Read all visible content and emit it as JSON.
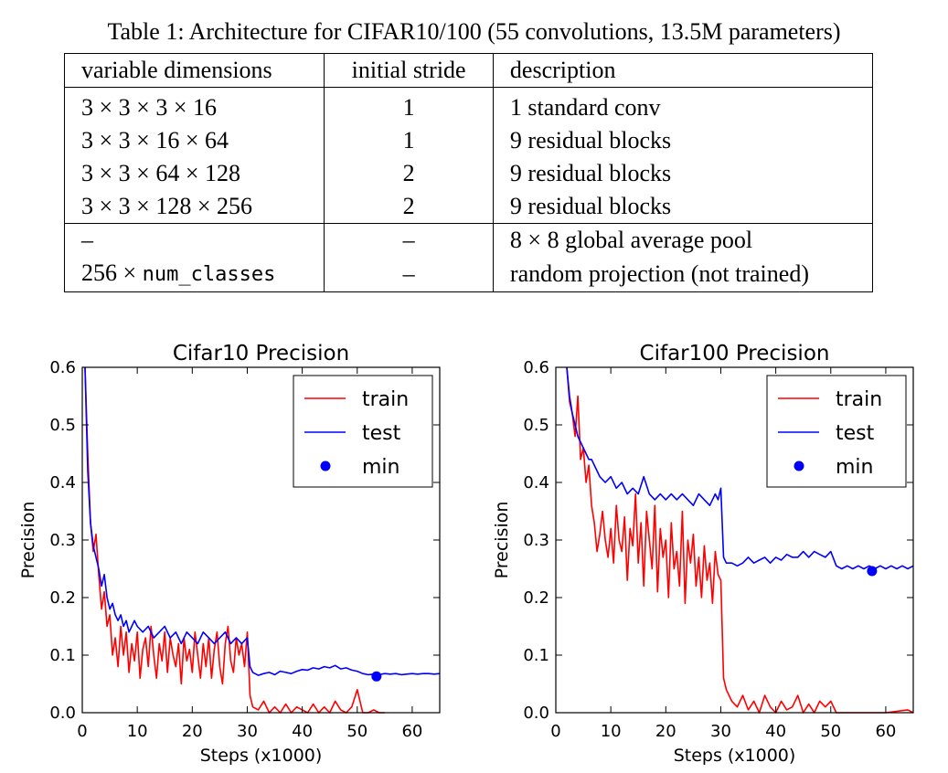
{
  "caption": "Table 1: Architecture for CIFAR10/100 (55 convolutions, 13.5M parameters)",
  "table": {
    "headers": [
      "variable dimensions",
      "initial stride",
      "description"
    ],
    "rows": [
      [
        "3 × 3 × 3 × 16",
        "1",
        "1 standard conv"
      ],
      [
        "3 × 3 × 16 × 64",
        "1",
        "9 residual blocks"
      ],
      [
        "3 × 3 × 64 × 128",
        "2",
        "9 residual blocks"
      ],
      [
        "3 × 3 × 128 × 256",
        "2",
        "9 residual blocks"
      ],
      [
        "–",
        "–",
        "8 × 8 global average pool"
      ],
      [
        "256 × ",
        "–",
        "random projection (not trained)"
      ]
    ],
    "num_classes_code": "num_classes"
  },
  "chart_data": [
    {
      "type": "line",
      "title": "Cifar10 Precision",
      "xlabel": "Steps (x1000)",
      "ylabel": "Precision",
      "xlim": [
        0,
        65
      ],
      "ylim": [
        0.0,
        0.6
      ],
      "xticks": [
        "0",
        "10",
        "20",
        "30",
        "40",
        "50",
        "60"
      ],
      "yticks": [
        "0.0",
        "0.1",
        "0.2",
        "0.3",
        "0.4",
        "0.5",
        "0.6"
      ],
      "legend_position": "top-right",
      "series": [
        {
          "name": "train",
          "color": "#ff0000",
          "x": [
            0.5,
            1,
            1.5,
            2,
            2.5,
            3,
            3.5,
            4,
            4.5,
            5,
            5.5,
            6,
            6.5,
            7,
            7.5,
            8,
            8.5,
            9,
            9.5,
            10,
            10.5,
            11,
            11.5,
            12,
            12.5,
            13,
            13.5,
            14,
            14.5,
            15,
            15.5,
            16,
            16.5,
            17,
            17.5,
            18,
            18.5,
            19,
            19.5,
            20,
            20.5,
            21,
            21.5,
            22,
            22.5,
            23,
            23.5,
            24,
            24.5,
            25,
            25.5,
            26,
            26.5,
            27,
            27.5,
            28,
            28.5,
            29,
            29.5,
            30,
            30.5,
            31,
            32,
            33,
            34,
            35,
            36,
            37,
            38,
            39,
            40,
            41,
            42,
            43,
            44,
            45,
            46,
            47,
            48,
            49,
            50,
            51,
            52,
            53,
            54,
            55
          ],
          "y": [
            0.6,
            0.45,
            0.33,
            0.28,
            0.31,
            0.24,
            0.18,
            0.21,
            0.15,
            0.17,
            0.1,
            0.13,
            0.08,
            0.15,
            0.1,
            0.14,
            0.07,
            0.12,
            0.09,
            0.14,
            0.06,
            0.11,
            0.13,
            0.08,
            0.15,
            0.1,
            0.06,
            0.12,
            0.09,
            0.14,
            0.07,
            0.13,
            0.1,
            0.08,
            0.12,
            0.05,
            0.13,
            0.09,
            0.11,
            0.07,
            0.14,
            0.1,
            0.06,
            0.12,
            0.08,
            0.13,
            0.06,
            0.11,
            0.14,
            0.08,
            0.05,
            0.12,
            0.15,
            0.09,
            0.07,
            0.13,
            0.1,
            0.12,
            0.08,
            0.14,
            0.03,
            0.01,
            0.005,
            0.02,
            0.0,
            0.01,
            0.0,
            0.015,
            0.0,
            0.01,
            0.005,
            0.0,
            0.015,
            0.0,
            0.01,
            0.0,
            0.02,
            0.005,
            0.0,
            0.01,
            0.04,
            0.0,
            0.0,
            0.005,
            0.0,
            0.0
          ]
        },
        {
          "name": "test",
          "color": "#0000ff",
          "x": [
            0.5,
            1,
            1.5,
            2,
            2.5,
            3,
            3.5,
            4,
            4.5,
            5,
            5.5,
            6,
            6.5,
            7,
            7.5,
            8,
            8.5,
            9,
            9.5,
            10,
            11,
            12,
            13,
            14,
            15,
            16,
            17,
            18,
            19,
            20,
            21,
            22,
            23,
            24,
            25,
            26,
            27,
            28,
            29,
            30,
            30.5,
            31,
            32,
            33,
            34,
            35,
            36,
            37,
            38,
            39,
            40,
            41,
            42,
            43,
            44,
            45,
            46,
            47,
            48,
            49,
            50,
            51,
            52,
            53,
            54,
            55,
            56,
            57,
            58,
            59,
            60,
            61,
            62,
            63,
            64,
            65
          ],
          "y": [
            0.6,
            0.42,
            0.33,
            0.29,
            0.27,
            0.25,
            0.22,
            0.24,
            0.2,
            0.18,
            0.19,
            0.17,
            0.16,
            0.17,
            0.15,
            0.16,
            0.14,
            0.15,
            0.16,
            0.15,
            0.14,
            0.15,
            0.13,
            0.14,
            0.15,
            0.13,
            0.14,
            0.12,
            0.14,
            0.13,
            0.12,
            0.14,
            0.13,
            0.12,
            0.13,
            0.14,
            0.12,
            0.13,
            0.12,
            0.13,
            0.08,
            0.07,
            0.065,
            0.068,
            0.07,
            0.066,
            0.072,
            0.07,
            0.068,
            0.072,
            0.075,
            0.074,
            0.078,
            0.076,
            0.08,
            0.078,
            0.082,
            0.076,
            0.078,
            0.074,
            0.072,
            0.068,
            0.066,
            0.067,
            0.066,
            0.068,
            0.067,
            0.068,
            0.066,
            0.067,
            0.068,
            0.067,
            0.068,
            0.068,
            0.067,
            0.068
          ]
        },
        {
          "name": "min",
          "color": "#0000ff",
          "marker": "circle",
          "x": [
            53.5
          ],
          "y": [
            0.063
          ]
        }
      ]
    },
    {
      "type": "line",
      "title": "Cifar100 Precision",
      "xlabel": "Steps (x1000)",
      "ylabel": "Precision",
      "xlim": [
        0,
        65
      ],
      "ylim": [
        0.0,
        0.6
      ],
      "xticks": [
        "0",
        "10",
        "20",
        "30",
        "40",
        "50",
        "60"
      ],
      "yticks": [
        "0.0",
        "0.1",
        "0.2",
        "0.3",
        "0.4",
        "0.5",
        "0.6"
      ],
      "legend_position": "top-right",
      "series": [
        {
          "name": "train",
          "color": "#ff0000",
          "x": [
            2,
            2.5,
            3,
            3.5,
            4,
            4.5,
            5,
            5.5,
            6,
            6.5,
            7,
            7.5,
            8,
            8.5,
            9,
            9.5,
            10,
            10.5,
            11,
            11.5,
            12,
            12.5,
            13,
            13.5,
            14,
            14.5,
            15,
            15.5,
            16,
            16.5,
            17,
            17.5,
            18,
            18.5,
            19,
            19.5,
            20,
            20.5,
            21,
            21.5,
            22,
            22.5,
            23,
            23.5,
            24,
            24.5,
            25,
            25.5,
            26,
            26.5,
            27,
            27.5,
            28,
            28.5,
            29,
            29.5,
            30,
            30.5,
            31,
            32,
            33,
            34,
            35,
            36,
            37,
            38,
            39,
            40,
            41,
            42,
            43,
            44,
            45,
            46,
            47,
            48,
            49,
            50,
            51,
            52,
            55,
            60,
            64,
            65
          ],
          "y": [
            0.6,
            0.54,
            0.52,
            0.48,
            0.55,
            0.44,
            0.46,
            0.4,
            0.43,
            0.36,
            0.33,
            0.28,
            0.31,
            0.35,
            0.3,
            0.27,
            0.32,
            0.26,
            0.36,
            0.3,
            0.28,
            0.34,
            0.23,
            0.32,
            0.29,
            0.38,
            0.26,
            0.33,
            0.22,
            0.35,
            0.3,
            0.25,
            0.36,
            0.21,
            0.32,
            0.27,
            0.3,
            0.2,
            0.33,
            0.25,
            0.28,
            0.22,
            0.35,
            0.19,
            0.3,
            0.26,
            0.31,
            0.22,
            0.27,
            0.2,
            0.29,
            0.23,
            0.26,
            0.19,
            0.28,
            0.24,
            0.23,
            0.06,
            0.04,
            0.02,
            0.01,
            0.03,
            0.005,
            0.02,
            0.0,
            0.03,
            0.01,
            0.0,
            0.02,
            0.005,
            0.01,
            0.03,
            0.0,
            0.015,
            0.0,
            0.02,
            0.01,
            0.02,
            0.0,
            0.0,
            0.0,
            0.0,
            0.005,
            0.0
          ]
        },
        {
          "name": "test",
          "color": "#0000ff",
          "x": [
            2,
            2.5,
            3,
            3.5,
            4,
            4.5,
            5,
            5.5,
            6,
            6.5,
            7,
            7.5,
            8,
            9,
            10,
            11,
            12,
            13,
            14,
            15,
            16,
            17,
            18,
            19,
            20,
            21,
            22,
            23,
            24,
            25,
            26,
            27,
            28,
            29,
            29.5,
            30,
            30.5,
            31,
            32,
            33,
            34,
            35,
            36,
            37,
            38,
            39,
            40,
            41,
            42,
            43,
            44,
            45,
            46,
            47,
            48,
            49,
            50,
            51,
            52,
            53,
            54,
            55,
            56,
            57,
            58,
            59,
            60,
            61,
            62,
            63,
            64,
            65
          ],
          "y": [
            0.6,
            0.55,
            0.52,
            0.5,
            0.48,
            0.47,
            0.46,
            0.45,
            0.44,
            0.44,
            0.43,
            0.42,
            0.41,
            0.4,
            0.41,
            0.39,
            0.4,
            0.38,
            0.39,
            0.38,
            0.41,
            0.38,
            0.37,
            0.38,
            0.37,
            0.38,
            0.37,
            0.38,
            0.37,
            0.36,
            0.38,
            0.37,
            0.36,
            0.38,
            0.37,
            0.39,
            0.27,
            0.26,
            0.26,
            0.255,
            0.26,
            0.27,
            0.26,
            0.265,
            0.27,
            0.26,
            0.27,
            0.265,
            0.275,
            0.27,
            0.27,
            0.28,
            0.27,
            0.28,
            0.275,
            0.27,
            0.28,
            0.255,
            0.25,
            0.255,
            0.25,
            0.255,
            0.25,
            0.255,
            0.25,
            0.255,
            0.25,
            0.255,
            0.25,
            0.255,
            0.25,
            0.255
          ]
        },
        {
          "name": "min",
          "color": "#0000ff",
          "marker": "circle",
          "x": [
            57.5
          ],
          "y": [
            0.246
          ]
        }
      ]
    }
  ]
}
